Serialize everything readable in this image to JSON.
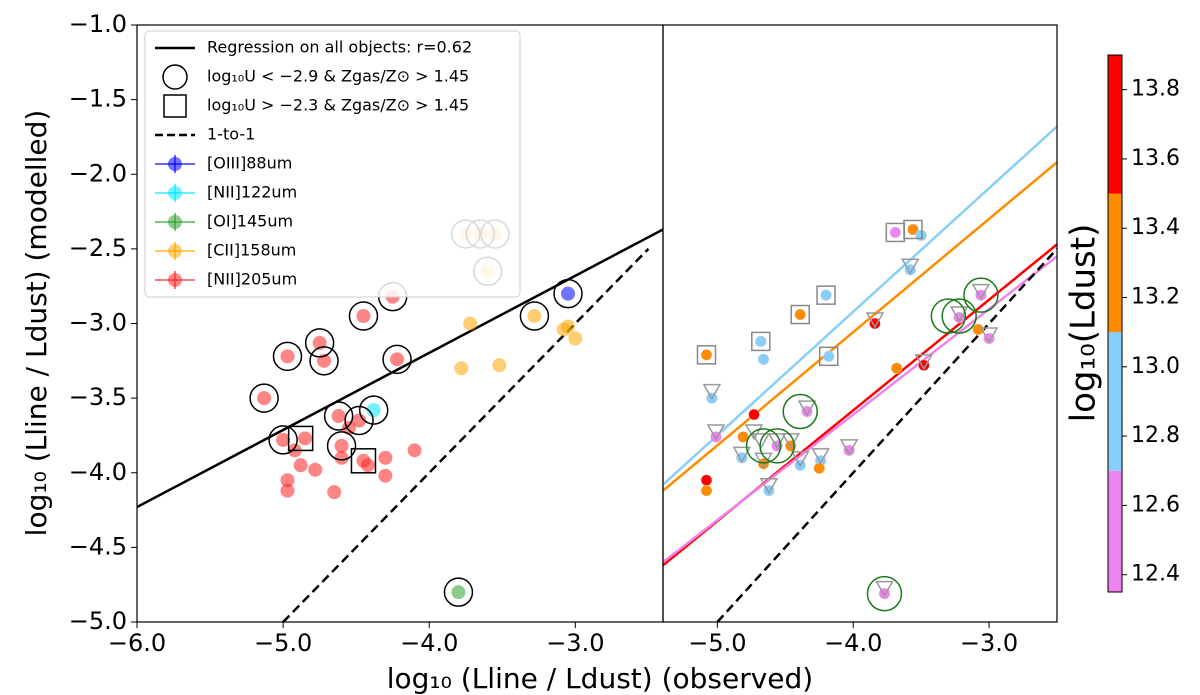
{
  "chart_data": [
    {
      "type": "scatter",
      "xlabel": "log₁₀ (Lline / Ldust) (observed)",
      "ylabel": "log₁₀ (Lline / Ldust) (modelled)",
      "xlim": [
        -6,
        -2.4
      ],
      "ylim": [
        -5,
        -1
      ],
      "xticks": [
        {
          "value": -6,
          "label": "−6.0"
        },
        {
          "value": -5,
          "label": "−5.0"
        },
        {
          "value": -4,
          "label": "−4.0"
        },
        {
          "value": -3,
          "label": "−3.0"
        }
      ],
      "yticks": [
        {
          "value": -5,
          "label": "−5.0"
        },
        {
          "value": -4.5,
          "label": "−4.5"
        },
        {
          "value": -4,
          "label": "−4.0"
        },
        {
          "value": -3.5,
          "label": "−3.5"
        },
        {
          "value": -3,
          "label": "−3.0"
        },
        {
          "value": -2.5,
          "label": "−2.5"
        },
        {
          "value": -2,
          "label": "−2.0"
        },
        {
          "value": -1.5,
          "label": "−1.5"
        },
        {
          "value": -1,
          "label": "−1.0"
        }
      ],
      "lines": [
        {
          "name": "Regression on all objects:  r=0.62",
          "color": "#000000",
          "dash": false,
          "x": [
            -6,
            -2.4
          ],
          "y": [
            -4.23,
            -2.37
          ]
        },
        {
          "name": "1-to-1",
          "color": "#000000",
          "dash": true,
          "x": [
            -5,
            -2.5
          ],
          "y": [
            -5,
            -2.5
          ]
        }
      ],
      "circles": {
        "name": "log₁₀U  <  −2.9 & Zgas/Z⊙ > 1.45",
        "x": [
          -5.13,
          -5.0,
          -4.97,
          -4.75,
          -4.72,
          -4.62,
          -4.6,
          -4.48,
          -4.45,
          -4.38,
          -4.25,
          -4.22,
          -3.75,
          -3.65,
          -3.55,
          -3.6,
          -3.28,
          -3.05,
          -3.8
        ],
        "y": [
          -3.5,
          -3.78,
          -3.22,
          -3.13,
          -3.25,
          -3.62,
          -3.82,
          -3.65,
          -2.95,
          -3.58,
          -2.82,
          -3.24,
          -2.4,
          -2.4,
          -2.4,
          -2.65,
          -2.95,
          -2.8,
          -4.8
        ]
      },
      "squares": {
        "name": "log₁₀U  >  −2.3 & Zgas/Z⊙ > 1.45",
        "x": [
          -4.88,
          -4.45
        ],
        "y": [
          -3.77,
          -3.92
        ]
      },
      "series": [
        {
          "name": "[OIII]88um",
          "color": "#0000ff",
          "x": [
            -3.05
          ],
          "y": [
            -2.8
          ]
        },
        {
          "name": "[NII]122um",
          "color": "#00e5ff",
          "x": [
            -4.38
          ],
          "y": [
            -3.58
          ]
        },
        {
          "name": "[OI]145um",
          "color": "#2ca02c",
          "x": [
            -3.8
          ],
          "y": [
            -4.8
          ]
        },
        {
          "name": "[CII]158um",
          "color": "#ffa500",
          "x": [
            -3.75,
            -3.65,
            -3.55,
            -3.6,
            -3.72,
            -3.78,
            -3.52,
            -3.28,
            -3.05,
            -3.0,
            -3.08
          ],
          "y": [
            -2.4,
            -2.4,
            -2.4,
            -2.65,
            -3.0,
            -3.3,
            -3.28,
            -2.95,
            -3.02,
            -3.1,
            -3.04
          ]
        },
        {
          "name": "[NII]205um",
          "color": "#ff2020",
          "x": [
            -5.13,
            -5.0,
            -4.97,
            -4.92,
            -4.88,
            -4.97,
            -4.97,
            -4.78,
            -4.75,
            -4.72,
            -4.62,
            -4.6,
            -4.55,
            -4.48,
            -4.45,
            -4.45,
            -4.42,
            -4.3,
            -4.3,
            -4.25,
            -4.22,
            -4.1,
            -4.65,
            -4.85,
            -4.6
          ],
          "y": [
            -3.5,
            -3.78,
            -3.22,
            -3.85,
            -3.95,
            -4.05,
            -4.12,
            -3.98,
            -3.13,
            -3.25,
            -3.62,
            -3.82,
            -3.7,
            -3.65,
            -2.95,
            -3.92,
            -3.95,
            -3.9,
            -4.02,
            -2.82,
            -3.24,
            -3.85,
            -4.13,
            -3.77,
            -3.9
          ]
        }
      ]
    },
    {
      "type": "scatter",
      "xlim": [
        -5.4,
        -2.5
      ],
      "ylim": [
        -5,
        -1
      ],
      "xticks": [
        {
          "value": -5,
          "label": "−5.0"
        },
        {
          "value": -4,
          "label": "−4.0"
        },
        {
          "value": -3,
          "label": "−3.0"
        }
      ],
      "lines": [
        {
          "color": "#87cefa",
          "x": [
            -5.4,
            -2.5
          ],
          "y": [
            -4.08,
            -1.68
          ]
        },
        {
          "color": "#ff8c00",
          "x": [
            -5.4,
            -2.5
          ],
          "y": [
            -4.12,
            -1.92
          ]
        },
        {
          "color": "#ff0000",
          "x": [
            -5.4,
            -2.5
          ],
          "y": [
            -4.62,
            -2.47
          ]
        },
        {
          "color": "#ee82ee",
          "x": [
            -5.4,
            -2.5
          ],
          "y": [
            -4.6,
            -2.55
          ]
        },
        {
          "color": "#000000",
          "dash": true,
          "x": [
            -5,
            -2.5
          ],
          "y": [
            -5,
            -2.5
          ]
        }
      ],
      "points": {
        "x": [
          -3.69,
          -3.56,
          -3.5,
          -3.58,
          -4.2,
          -4.39,
          -4.68,
          -4.66,
          -5.08,
          -4.18,
          -3.84,
          -3.06,
          -3.22,
          -3.0,
          -3.08,
          -3.68,
          -3.48,
          -5.04,
          -4.73,
          -4.34,
          -5.01,
          -4.81,
          -4.82,
          -5.08,
          -5.08,
          -4.62,
          -4.66,
          -4.56,
          -4.46,
          -4.24,
          -4.25,
          -4.39,
          -4.03,
          -3.77
        ],
        "y": [
          -2.39,
          -2.37,
          -2.41,
          -2.64,
          -2.81,
          -2.94,
          -3.12,
          -3.24,
          -3.21,
          -3.22,
          -3.0,
          -2.81,
          -2.96,
          -3.1,
          -3.04,
          -3.3,
          -3.28,
          -3.5,
          -3.61,
          -3.59,
          -3.76,
          -3.76,
          -3.9,
          -4.05,
          -4.12,
          -4.12,
          -3.94,
          -3.82,
          -3.82,
          -3.92,
          -3.97,
          -3.95,
          -3.85,
          -4.81
        ],
        "c": [
          12.5,
          13.3,
          12.9,
          12.9,
          12.9,
          13.3,
          12.9,
          12.9,
          13.3,
          12.9,
          13.7,
          12.5,
          12.5,
          12.5,
          13.3,
          13.3,
          13.7,
          12.9,
          13.7,
          12.5,
          12.5,
          13.3,
          12.9,
          13.7,
          13.3,
          12.9,
          13.3,
          12.5,
          13.3,
          12.9,
          13.3,
          12.9,
          12.5,
          12.5
        ]
      },
      "triangles": {
        "x": [
          -5.04,
          -5.01,
          -4.68,
          -4.56,
          -4.46,
          -4.62,
          -4.39,
          -4.24,
          -4.03,
          -3.84,
          -3.48,
          -3.06,
          -3.22,
          -3.0,
          -3.77,
          -4.34,
          -3.58,
          -4.82,
          -4.66,
          -4.73
        ],
        "y": [
          -3.45,
          -3.72,
          -3.78,
          -3.78,
          -3.78,
          -4.08,
          -3.9,
          -3.88,
          -3.82,
          -2.97,
          -3.25,
          -2.78,
          -2.93,
          -3.07,
          -4.77,
          -3.56,
          -2.61,
          -3.87,
          -3.91,
          -3.72
        ]
      },
      "squares": {
        "x": [
          -3.69,
          -3.56,
          -4.2,
          -4.39,
          -4.68,
          -5.08,
          -4.18
        ],
        "y": [
          -2.39,
          -2.37,
          -2.81,
          -2.94,
          -3.12,
          -3.21,
          -3.22
        ]
      },
      "circles": {
        "x": [
          -4.66,
          -4.56,
          -4.39,
          -3.22,
          -3.3,
          -3.06,
          -3.77
        ],
        "y": [
          -3.82,
          -3.82,
          -3.59,
          -2.95,
          -2.95,
          -2.81,
          -4.81
        ]
      },
      "colorbar": {
        "label": "log₁₀(Ldust)",
        "lim": [
          12.35,
          13.9
        ],
        "boundaries": [
          12.7,
          13.1,
          13.5
        ],
        "colors": [
          "#ee82ee",
          "#87cefa",
          "#ff8c00",
          "#ff0000"
        ],
        "ticks": [
          12.4,
          12.6,
          12.8,
          {
            "value": 13,
            "label": "13.0"
          },
          13.2,
          13.4,
          13.6,
          13.8
        ]
      }
    }
  ]
}
